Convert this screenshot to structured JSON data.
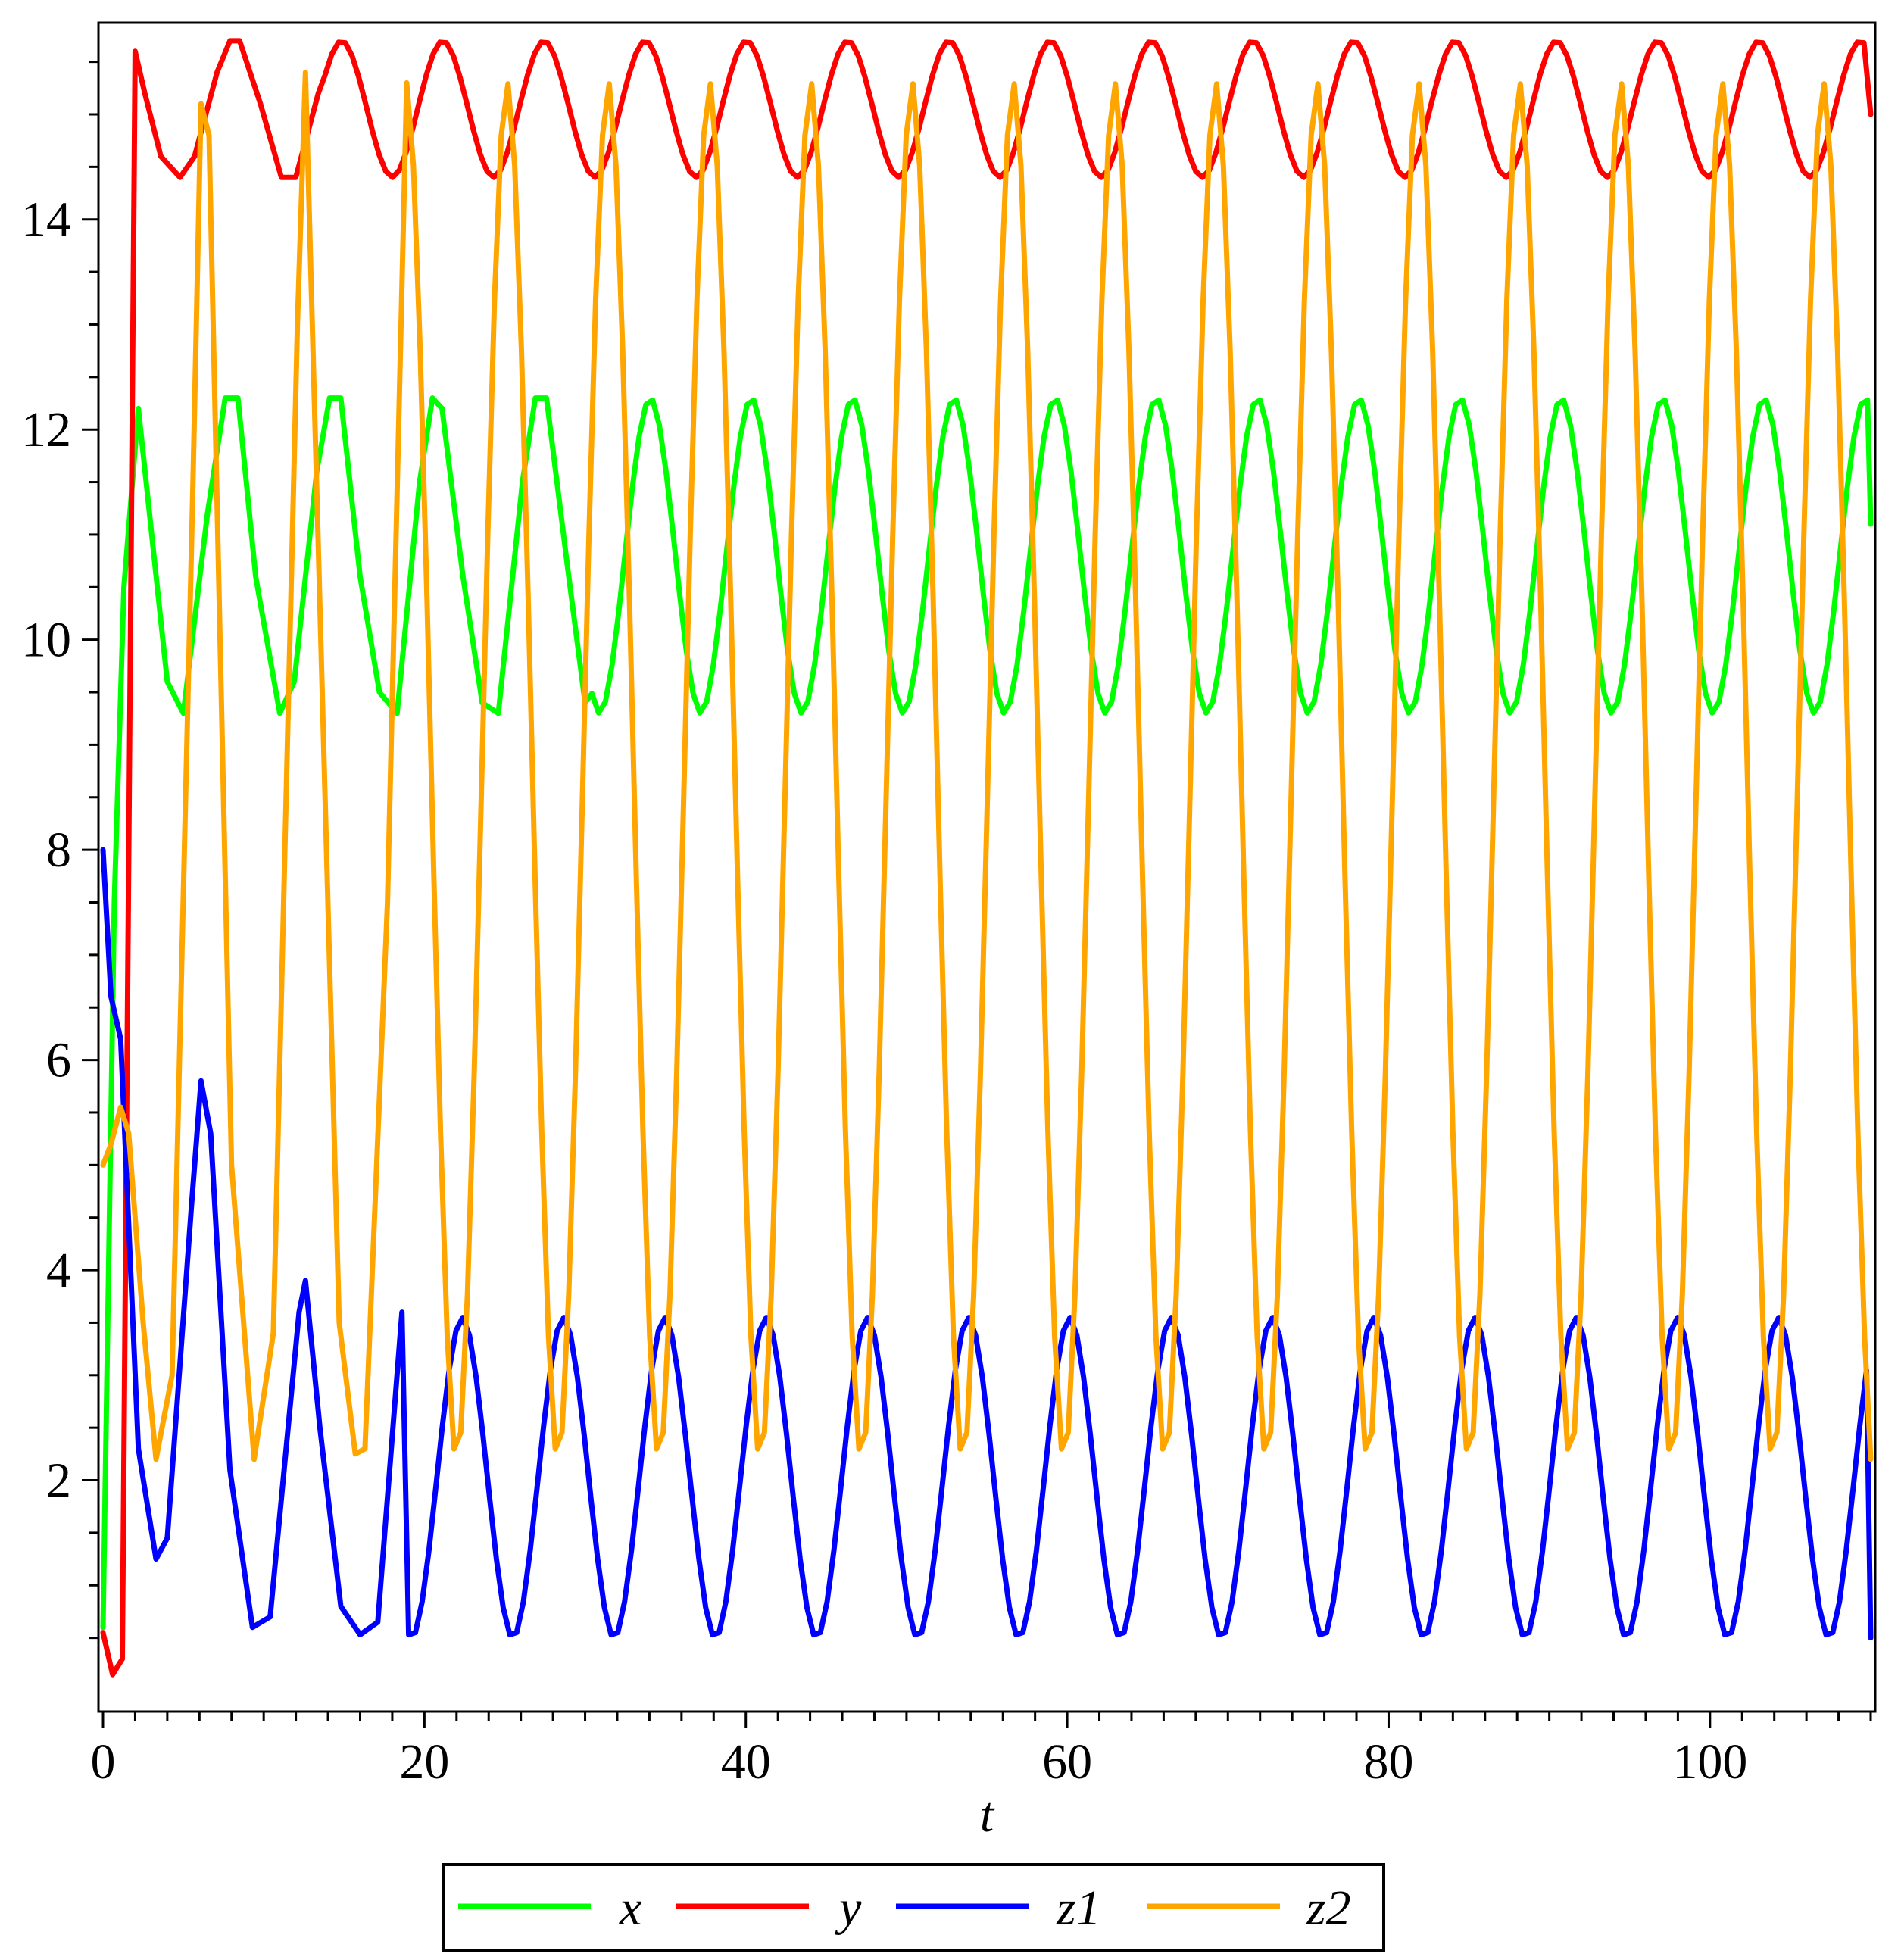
{
  "chart_data": {
    "type": "line",
    "title": "",
    "xlabel": "t",
    "ylabel": "",
    "xlim": [
      0,
      110
    ],
    "ylim": [
      0,
      15.8
    ],
    "grid": false,
    "legend_position": "bottom",
    "x_ticks": [
      0,
      20,
      40,
      60,
      80,
      100
    ],
    "x_tick_labels": [
      "0",
      "20",
      "40",
      "60",
      "80",
      "100"
    ],
    "y_ticks": [
      2,
      4,
      6,
      8,
      10,
      12,
      14
    ],
    "y_tick_labels": [
      "2",
      "4",
      "6",
      "8",
      "10",
      "12",
      "14"
    ],
    "series": [
      {
        "name": "x",
        "color": "#00ff00",
        "x": [
          0,
          0.7,
          1.3,
          2.2,
          4,
          5,
          6.5,
          7.6,
          8.4,
          9.5,
          11,
          11.9,
          13.3,
          14.1,
          14.8,
          16,
          17.2,
          18.3,
          19.7,
          20.5,
          21.1,
          22.4,
          23.6,
          24.6,
          26.1,
          26.9,
          27.6,
          28.9,
          30
        ],
        "values": [
          0.6,
          7.5,
          10.5,
          12.2,
          9.6,
          9.3,
          11.2,
          12.3,
          12.3,
          10.6,
          9.3,
          9.6,
          11.6,
          12.3,
          12.3,
          10.6,
          9.5,
          9.3,
          11.5,
          12.3,
          12.2,
          10.6,
          9.4,
          9.3,
          11.5,
          12.3,
          12.3,
          10.7,
          9.4
        ],
        "period": 6.3,
        "cycle_start_t": 24.6,
        "cycle_min": 9.3,
        "cycle_max": 12.3,
        "end_t": 110,
        "end_value": 11.1
      },
      {
        "name": "y",
        "color": "#ff0000",
        "x": [
          0,
          0.6,
          1.2,
          2,
          2.6,
          3.6,
          4.8,
          5.7,
          7.1,
          7.9,
          8.5,
          9.8,
          11.1,
          12,
          13.4
        ],
        "values": [
          0.55,
          0.15,
          0.3,
          15.6,
          15.2,
          14.6,
          14.4,
          14.6,
          15.4,
          15.7,
          15.7,
          15.1,
          14.4,
          14.4,
          15.2
        ],
        "period": 6.3,
        "cycle_start_t": 11.7,
        "cycle_min": 14.4,
        "cycle_max": 15.7,
        "end_t": 110,
        "end_value": 15.0
      },
      {
        "name": "z1",
        "color": "#0000ff",
        "x": [
          0,
          0.5,
          1.1,
          2.2,
          3.3,
          4,
          5.5,
          6.1,
          6.7,
          7.9,
          9.3,
          10.4,
          12.2,
          12.6,
          13.5,
          14.8,
          16,
          17.1,
          18.6
        ],
        "values": [
          8.0,
          6.6,
          6.2,
          2.3,
          1.25,
          1.45,
          4.6,
          5.8,
          5.3,
          2.1,
          0.6,
          0.7,
          3.6,
          3.9,
          2.5,
          0.8,
          0.53,
          0.65,
          3.6
        ],
        "period": 6.3,
        "cycle_start_t": 12.9,
        "cycle_min": 0.5,
        "cycle_max": 3.55,
        "end_t": 110,
        "end_value": 0.5
      },
      {
        "name": "z2",
        "color": "#ffa500",
        "x": [
          0,
          0.5,
          1.1,
          1.6,
          2.5,
          3.3,
          4.3,
          5.6,
          6.1,
          6.6,
          8,
          9.4,
          10.6,
          12.1,
          12.6,
          13.2,
          14.7,
          15.7,
          16.3,
          17.7,
          18.9
        ],
        "values": [
          5.0,
          5.2,
          5.55,
          5.3,
          3.5,
          2.2,
          3.0,
          11.5,
          15.1,
          14.8,
          5.0,
          2.2,
          3.4,
          13.0,
          15.4,
          12.0,
          3.5,
          2.25,
          2.3,
          7.5,
          15.3
        ],
        "period": 6.3,
        "cycle_start_t": 15.7,
        "cycle_min": 2.2,
        "cycle_max": 15.3,
        "end_t": 110,
        "end_value": 2.2
      }
    ]
  },
  "legend": {
    "items": [
      {
        "label": "x",
        "color": "#00ff00"
      },
      {
        "label": "y",
        "color": "#ff0000"
      },
      {
        "label": "z1",
        "color": "#0000ff"
      },
      {
        "label": "z2",
        "color": "#ffa500"
      }
    ]
  }
}
